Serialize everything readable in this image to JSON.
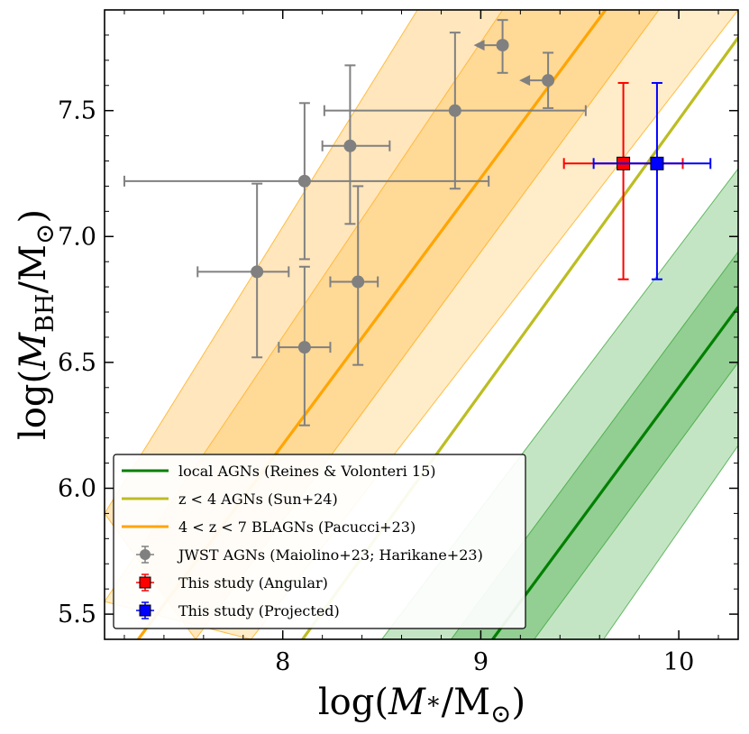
{
  "chart_data": {
    "type": "scatter",
    "xlabel": "log(M*/M⊙)",
    "ylabel": "log(MBH/M⊙)",
    "xlim": [
      7.1,
      10.3
    ],
    "ylim": [
      5.4,
      7.9
    ],
    "x_ticks": [
      8,
      9,
      10
    ],
    "y_ticks": [
      5.5,
      6.0,
      6.5,
      7.0,
      7.5
    ],
    "x_tick_labels": [
      "8",
      "9",
      "10"
    ],
    "y_tick_labels": [
      "5.5",
      "6.0",
      "6.5",
      "7.0",
      "7.5"
    ],
    "grid": false,
    "legend_position": "lower-left",
    "relations": [
      {
        "name": "local AGNs (Reines & Volonteri 15)",
        "color": "#008000",
        "line": [
          [
            9.06,
            5.4
          ],
          [
            10.3,
            6.72
          ]
        ],
        "inner_band": [
          [
            [
              8.85,
              5.4
            ],
            [
              10.3,
              6.94
            ]
          ],
          [
            [
              9.27,
              5.4
            ],
            [
              10.3,
              6.5
            ]
          ]
        ],
        "outer_band": [
          [
            [
              8.5,
              5.4
            ],
            [
              10.3,
              7.27
            ]
          ],
          [
            [
              9.62,
              5.4
            ],
            [
              10.3,
              6.17
            ]
          ]
        ]
      },
      {
        "name": "z < 4 AGNs (Sun+24)",
        "color": "#bcbd22",
        "line": [
          [
            8.1,
            5.4
          ],
          [
            10.3,
            7.79
          ]
        ]
      },
      {
        "name": "4 < z < 7 BLAGNs (Pacucci+23)",
        "color": "#ffa500",
        "line": [
          [
            7.27,
            5.4
          ],
          [
            9.63,
            7.9
          ]
        ],
        "inner_band": [
          [
            [
              7.1,
              5.9
            ],
            [
              8.68,
              7.9
            ]
          ],
          [
            [
              7.56,
              5.4
            ],
            [
              9.9,
              7.9
            ]
          ]
        ],
        "outer_band": [
          [
            [
              7.1,
              5.55
            ],
            [
              9.11,
              7.9
            ]
          ],
          [
            [
              7.84,
              5.4
            ],
            [
              10.3,
              7.9
            ]
          ]
        ]
      }
    ],
    "series": [
      {
        "name": "JWST AGNs (Maiolino+23; Harikane+23)",
        "color": "#808080",
        "marker": "circle",
        "points": [
          {
            "x": 7.87,
            "y": 6.86,
            "xerr": [
              0.3,
              0.16
            ],
            "yerr": [
              0.34,
              0.35
            ]
          },
          {
            "x": 8.11,
            "y": 6.56,
            "xerr": [
              0.13,
              0.13
            ],
            "yerr": [
              0.31,
              0.32
            ]
          },
          {
            "x": 8.11,
            "y": 7.22,
            "xerr": [
              0.91,
              0.93
            ],
            "yerr": [
              0.31,
              0.31
            ]
          },
          {
            "x": 8.34,
            "y": 7.36,
            "xerr": [
              0.14,
              0.2
            ],
            "yerr": [
              0.31,
              0.32
            ]
          },
          {
            "x": 8.38,
            "y": 6.82,
            "xerr": [
              0.14,
              0.1
            ],
            "yerr": [
              0.33,
              0.38
            ]
          },
          {
            "x": 8.87,
            "y": 7.5,
            "xerr": [
              0.66,
              0.66
            ],
            "yerr": [
              0.31,
              0.31
            ]
          },
          {
            "x": 9.11,
            "y": 7.76,
            "xerr": [
              0.0,
              0.0
            ],
            "yerr": [
              0.11,
              0.1
            ],
            "upper_limit_x": true
          },
          {
            "x": 9.34,
            "y": 7.62,
            "xerr": [
              0.0,
              0.0
            ],
            "yerr": [
              0.11,
              0.11
            ],
            "upper_limit_x": true
          }
        ]
      },
      {
        "name": "This study (Angular)",
        "color": "#ff0000",
        "marker": "square",
        "points": [
          {
            "x": 9.72,
            "y": 7.29,
            "xerr": [
              0.3,
              0.3
            ],
            "yerr": [
              0.46,
              0.32
            ]
          }
        ]
      },
      {
        "name": "This study (Projected)",
        "color": "#0000ff",
        "marker": "square",
        "points": [
          {
            "x": 9.89,
            "y": 7.29,
            "xerr": [
              0.32,
              0.27
            ],
            "yerr": [
              0.46,
              0.32
            ]
          }
        ]
      }
    ],
    "legend": [
      {
        "label": "local AGNs (Reines & Volonteri 15)",
        "kind": "line",
        "color": "#008000"
      },
      {
        "label": "z < 4 AGNs (Sun+24)",
        "kind": "line",
        "color": "#bcbd22"
      },
      {
        "label": "4 < z < 7 BLAGNs (Pacucci+23)",
        "kind": "line",
        "color": "#ffa500"
      },
      {
        "label": "JWST AGNs (Maiolino+23; Harikane+23)",
        "kind": "circle",
        "color": "#808080"
      },
      {
        "label": "This study (Angular)",
        "kind": "square",
        "color": "#ff0000"
      },
      {
        "label": "This study (Projected)",
        "kind": "square",
        "color": "#0000ff"
      }
    ]
  }
}
